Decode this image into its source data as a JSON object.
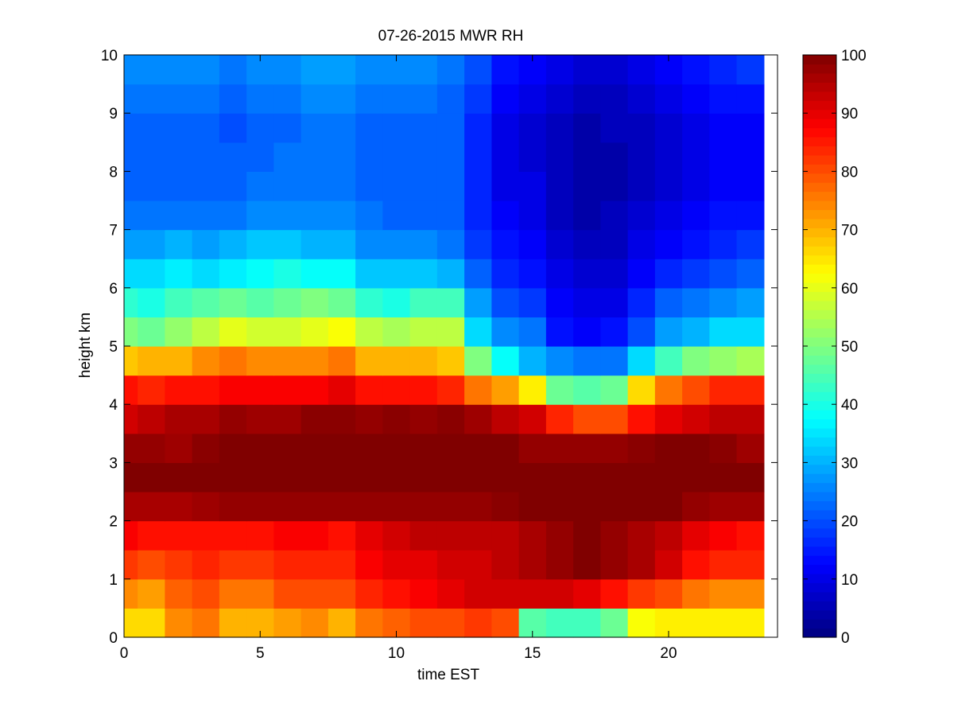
{
  "chart_data": {
    "type": "heatmap",
    "title": "07-26-2015 MWR RH",
    "xlabel": "time EST",
    "ylabel": "height km",
    "xlim": [
      0,
      24
    ],
    "ylim": [
      0,
      10
    ],
    "xticks": [
      "0",
      "5",
      "10",
      "15",
      "20"
    ],
    "yticks": [
      "0",
      "1",
      "2",
      "3",
      "4",
      "5",
      "6",
      "7",
      "8",
      "9",
      "10"
    ],
    "colorbar": {
      "range": [
        0,
        100
      ],
      "ticks": [
        "0",
        "10",
        "20",
        "30",
        "40",
        "50",
        "60",
        "70",
        "80",
        "90",
        "100"
      ],
      "colormap": "jet"
    },
    "x": [
      0,
      1,
      2,
      3,
      4,
      5,
      6,
      7,
      8,
      9,
      10,
      11,
      12,
      13,
      14,
      15,
      16,
      17,
      18,
      19,
      20,
      21,
      22,
      23
    ],
    "y": [
      0,
      0.5,
      1,
      1.5,
      2,
      2.5,
      3,
      3.5,
      4,
      4.5,
      5,
      5.5,
      6,
      6.5,
      7,
      7.5,
      8,
      8.5,
      9,
      9.5
    ],
    "z": [
      [
        66,
        66,
        74,
        76,
        70,
        70,
        72,
        74,
        70,
        76,
        78,
        80,
        80,
        82,
        80,
        46,
        44,
        44,
        48,
        62,
        64,
        64,
        64,
        64
      ],
      [
        74,
        72,
        78,
        80,
        76,
        76,
        80,
        80,
        80,
        84,
        86,
        88,
        90,
        92,
        92,
        92,
        92,
        90,
        86,
        82,
        80,
        76,
        74,
        74
      ],
      [
        82,
        80,
        82,
        84,
        82,
        82,
        84,
        84,
        84,
        88,
        90,
        90,
        92,
        92,
        94,
        96,
        98,
        100,
        98,
        96,
        92,
        86,
        84,
        84
      ],
      [
        88,
        86,
        86,
        86,
        86,
        86,
        88,
        88,
        86,
        90,
        92,
        94,
        94,
        94,
        94,
        96,
        98,
        100,
        98,
        96,
        94,
        90,
        88,
        86
      ],
      [
        96,
        96,
        96,
        97,
        98,
        98,
        98,
        98,
        98,
        98,
        98,
        98,
        98,
        98,
        99,
        100,
        100,
        100,
        100,
        100,
        100,
        98,
        97,
        97
      ],
      [
        100,
        100,
        100,
        100,
        100,
        100,
        100,
        100,
        100,
        100,
        100,
        100,
        100,
        100,
        100,
        100,
        100,
        100,
        100,
        100,
        100,
        100,
        100,
        100
      ],
      [
        98,
        98,
        97,
        99,
        100,
        100,
        100,
        100,
        100,
        100,
        100,
        100,
        100,
        100,
        100,
        98,
        98,
        98,
        98,
        99,
        100,
        100,
        99,
        97
      ],
      [
        92,
        94,
        96,
        96,
        98,
        97,
        97,
        99,
        99,
        98,
        99,
        98,
        99,
        97,
        94,
        92,
        84,
        80,
        80,
        86,
        90,
        92,
        94,
        94
      ],
      [
        86,
        84,
        86,
        86,
        88,
        88,
        88,
        88,
        90,
        86,
        86,
        86,
        84,
        76,
        72,
        64,
        48,
        46,
        48,
        66,
        76,
        80,
        84,
        84
      ],
      [
        68,
        70,
        70,
        74,
        76,
        74,
        74,
        74,
        76,
        70,
        70,
        70,
        68,
        50,
        38,
        30,
        26,
        24,
        24,
        34,
        44,
        50,
        52,
        54
      ],
      [
        50,
        48,
        52,
        56,
        60,
        58,
        58,
        60,
        62,
        56,
        54,
        56,
        56,
        34,
        26,
        24,
        14,
        12,
        14,
        20,
        28,
        30,
        34,
        34
      ],
      [
        42,
        40,
        44,
        46,
        48,
        46,
        48,
        50,
        48,
        42,
        40,
        44,
        44,
        28,
        20,
        18,
        12,
        10,
        10,
        16,
        22,
        24,
        26,
        28
      ],
      [
        34,
        34,
        36,
        34,
        36,
        38,
        40,
        38,
        38,
        32,
        32,
        32,
        30,
        22,
        16,
        14,
        10,
        8,
        8,
        12,
        16,
        18,
        20,
        22
      ],
      [
        28,
        28,
        30,
        28,
        30,
        32,
        32,
        30,
        30,
        26,
        26,
        26,
        24,
        18,
        14,
        12,
        8,
        6,
        6,
        10,
        12,
        14,
        16,
        18
      ],
      [
        24,
        24,
        24,
        24,
        24,
        26,
        26,
        26,
        26,
        24,
        22,
        22,
        22,
        16,
        12,
        10,
        6,
        4,
        6,
        8,
        10,
        12,
        14,
        14
      ],
      [
        22,
        22,
        22,
        22,
        22,
        24,
        24,
        24,
        24,
        22,
        22,
        22,
        22,
        16,
        10,
        10,
        6,
        4,
        4,
        6,
        8,
        10,
        12,
        12
      ],
      [
        22,
        22,
        22,
        22,
        22,
        22,
        24,
        24,
        24,
        22,
        22,
        22,
        22,
        16,
        10,
        8,
        6,
        4,
        4,
        6,
        8,
        10,
        12,
        12
      ],
      [
        22,
        22,
        22,
        22,
        20,
        22,
        22,
        24,
        24,
        22,
        22,
        22,
        22,
        16,
        10,
        8,
        6,
        4,
        6,
        6,
        8,
        10,
        12,
        12
      ],
      [
        24,
        24,
        24,
        24,
        22,
        24,
        24,
        26,
        26,
        24,
        24,
        24,
        22,
        18,
        12,
        10,
        8,
        6,
        6,
        8,
        10,
        12,
        14,
        14
      ],
      [
        26,
        26,
        26,
        26,
        24,
        26,
        26,
        28,
        28,
        26,
        26,
        26,
        24,
        20,
        14,
        12,
        10,
        8,
        8,
        10,
        12,
        14,
        16,
        18
      ]
    ]
  }
}
